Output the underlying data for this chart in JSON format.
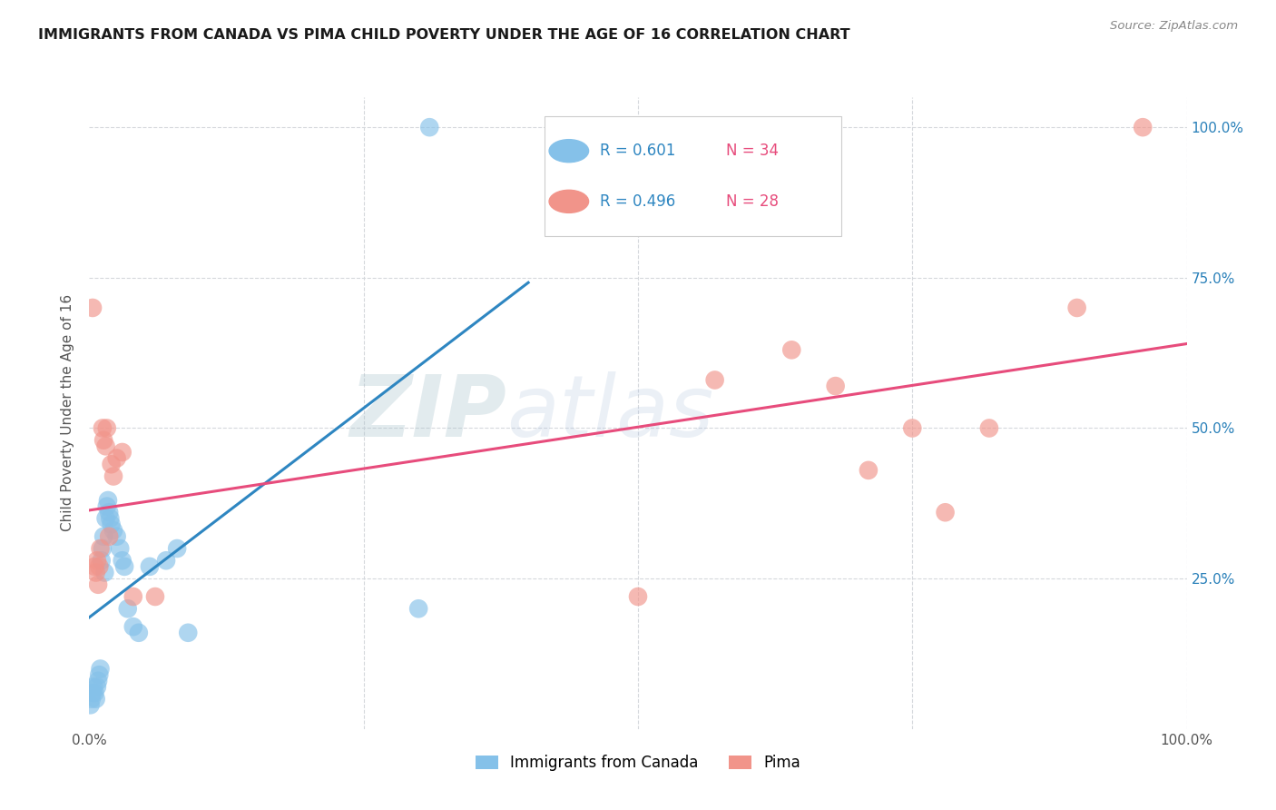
{
  "title": "IMMIGRANTS FROM CANADA VS PIMA CHILD POVERTY UNDER THE AGE OF 16 CORRELATION CHART",
  "source": "Source: ZipAtlas.com",
  "ylabel": "Child Poverty Under the Age of 16",
  "legend_label1": "Immigrants from Canada",
  "legend_label2": "Pima",
  "color_blue": "#85c1e9",
  "color_pink": "#f1948a",
  "line_blue": "#2e86c1",
  "line_pink": "#e74c7c",
  "watermark_zip": "ZIP",
  "watermark_atlas": "atlas",
  "blue_points_x": [
    0.001,
    0.002,
    0.003,
    0.004,
    0.005,
    0.006,
    0.007,
    0.008,
    0.009,
    0.01,
    0.011,
    0.012,
    0.013,
    0.014,
    0.015,
    0.016,
    0.017,
    0.018,
    0.019,
    0.02,
    0.022,
    0.025,
    0.028,
    0.03,
    0.032,
    0.035,
    0.04,
    0.045,
    0.055,
    0.07,
    0.08,
    0.09,
    0.3,
    0.31
  ],
  "blue_points_y": [
    0.04,
    0.05,
    0.06,
    0.07,
    0.06,
    0.05,
    0.07,
    0.08,
    0.09,
    0.1,
    0.28,
    0.3,
    0.32,
    0.26,
    0.35,
    0.37,
    0.38,
    0.36,
    0.35,
    0.34,
    0.33,
    0.32,
    0.3,
    0.28,
    0.27,
    0.2,
    0.17,
    0.16,
    0.27,
    0.28,
    0.3,
    0.16,
    0.2,
    1.0
  ],
  "pink_points_x": [
    0.003,
    0.005,
    0.006,
    0.007,
    0.008,
    0.009,
    0.01,
    0.012,
    0.013,
    0.015,
    0.016,
    0.018,
    0.02,
    0.022,
    0.025,
    0.03,
    0.04,
    0.06,
    0.5,
    0.57,
    0.64,
    0.68,
    0.71,
    0.75,
    0.78,
    0.82,
    0.9,
    0.96
  ],
  "pink_points_y": [
    0.7,
    0.27,
    0.26,
    0.28,
    0.24,
    0.27,
    0.3,
    0.5,
    0.48,
    0.47,
    0.5,
    0.32,
    0.44,
    0.42,
    0.45,
    0.46,
    0.22,
    0.22,
    0.22,
    0.58,
    0.63,
    0.57,
    0.43,
    0.5,
    0.36,
    0.5,
    0.7,
    1.0
  ],
  "blue_line_x": [
    0.0,
    0.4
  ],
  "pink_line_x": [
    0.0,
    1.0
  ],
  "xlim": [
    0.0,
    1.0
  ],
  "ylim": [
    0.0,
    1.05
  ]
}
